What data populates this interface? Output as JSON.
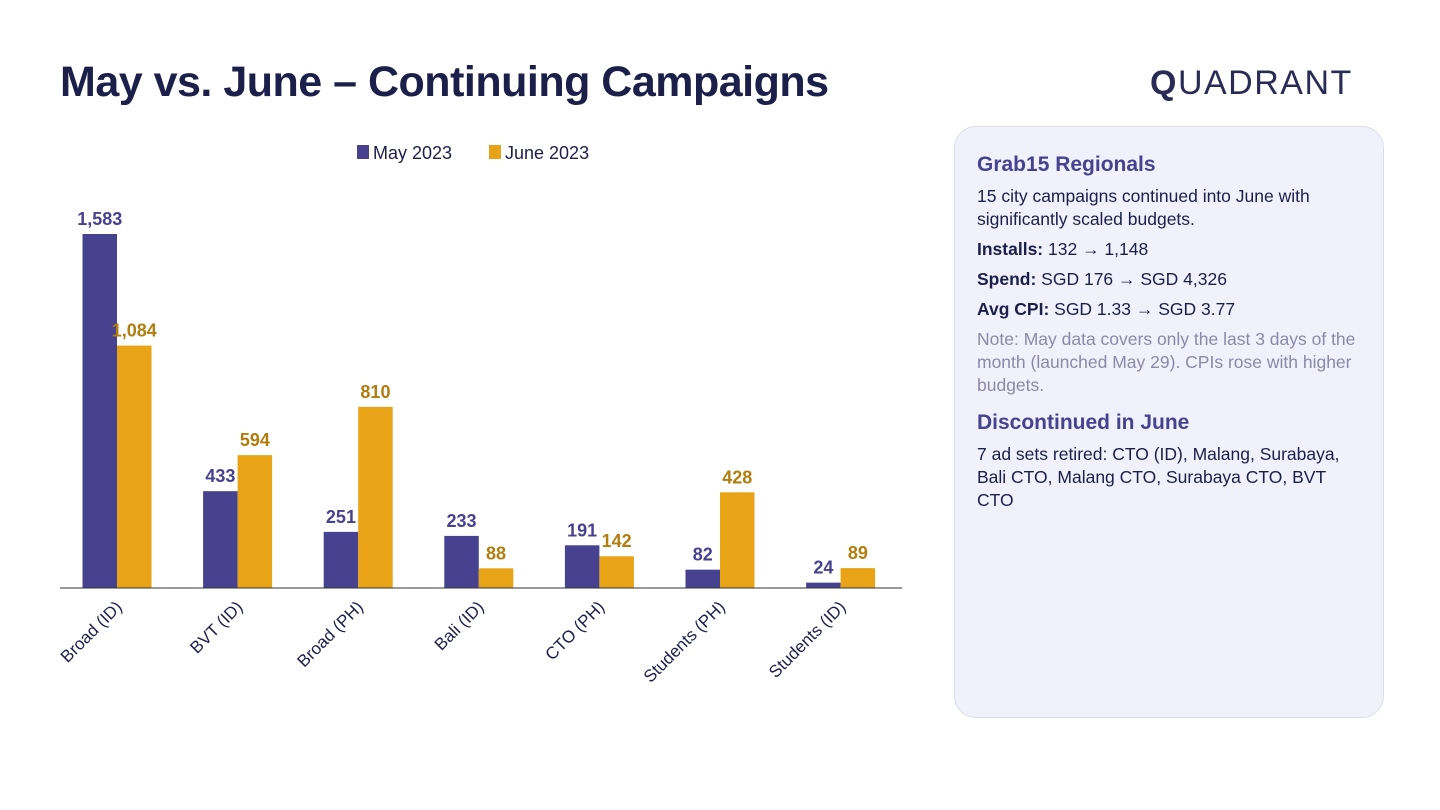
{
  "title": "May vs. June – Continuing Campaigns",
  "logo": {
    "q": "Q",
    "rest": "UADRANT"
  },
  "colors": {
    "may": "#46428f",
    "june": "#e8a317",
    "may_label": "#46428f",
    "june_label": "#b07d0e"
  },
  "chart_data": {
    "type": "bar",
    "title": "",
    "xlabel": "",
    "ylabel": "",
    "ylim": [
      0,
      1583
    ],
    "grid": false,
    "legend": "top-center",
    "categories": [
      "Broad (ID)",
      "BVT (ID)",
      "Broad (PH)",
      "Bali (ID)",
      "CTO (PH)",
      "Students (PH)",
      "Students (ID)"
    ],
    "series": [
      {
        "name": "May 2023",
        "values": [
          1583,
          433,
          251,
          233,
          191,
          82,
          24
        ],
        "labels": [
          "1,583",
          "433",
          "251",
          "233",
          "191",
          "82",
          "24"
        ]
      },
      {
        "name": "June 2023",
        "values": [
          1084,
          594,
          810,
          88,
          142,
          428,
          89
        ],
        "labels": [
          "1,084",
          "594",
          "810",
          "88",
          "142",
          "428",
          "89"
        ]
      }
    ]
  },
  "panel": {
    "heading1": "Grab15 Regionals",
    "intro": "15 city campaigns continued into June with significantly scaled budgets.",
    "installs_label": "Installs:",
    "installs_value": " 132 → 1,148",
    "spend_label": "Spend:",
    "spend_value": " SGD 176 → SGD 4,326",
    "cpi_label": "Avg CPI:",
    "cpi_value": " SGD 1.33 → SGD 3.77",
    "note": "Note: May data covers only the last 3 days of the month (launched May 29). CPIs rose with higher budgets.",
    "heading2": "Discontinued in June",
    "discontinued": "7 ad sets retired: CTO (ID), Malang, Surabaya, Bali CTO, Malang CTO, Surabaya CTO, BVT CTO"
  }
}
